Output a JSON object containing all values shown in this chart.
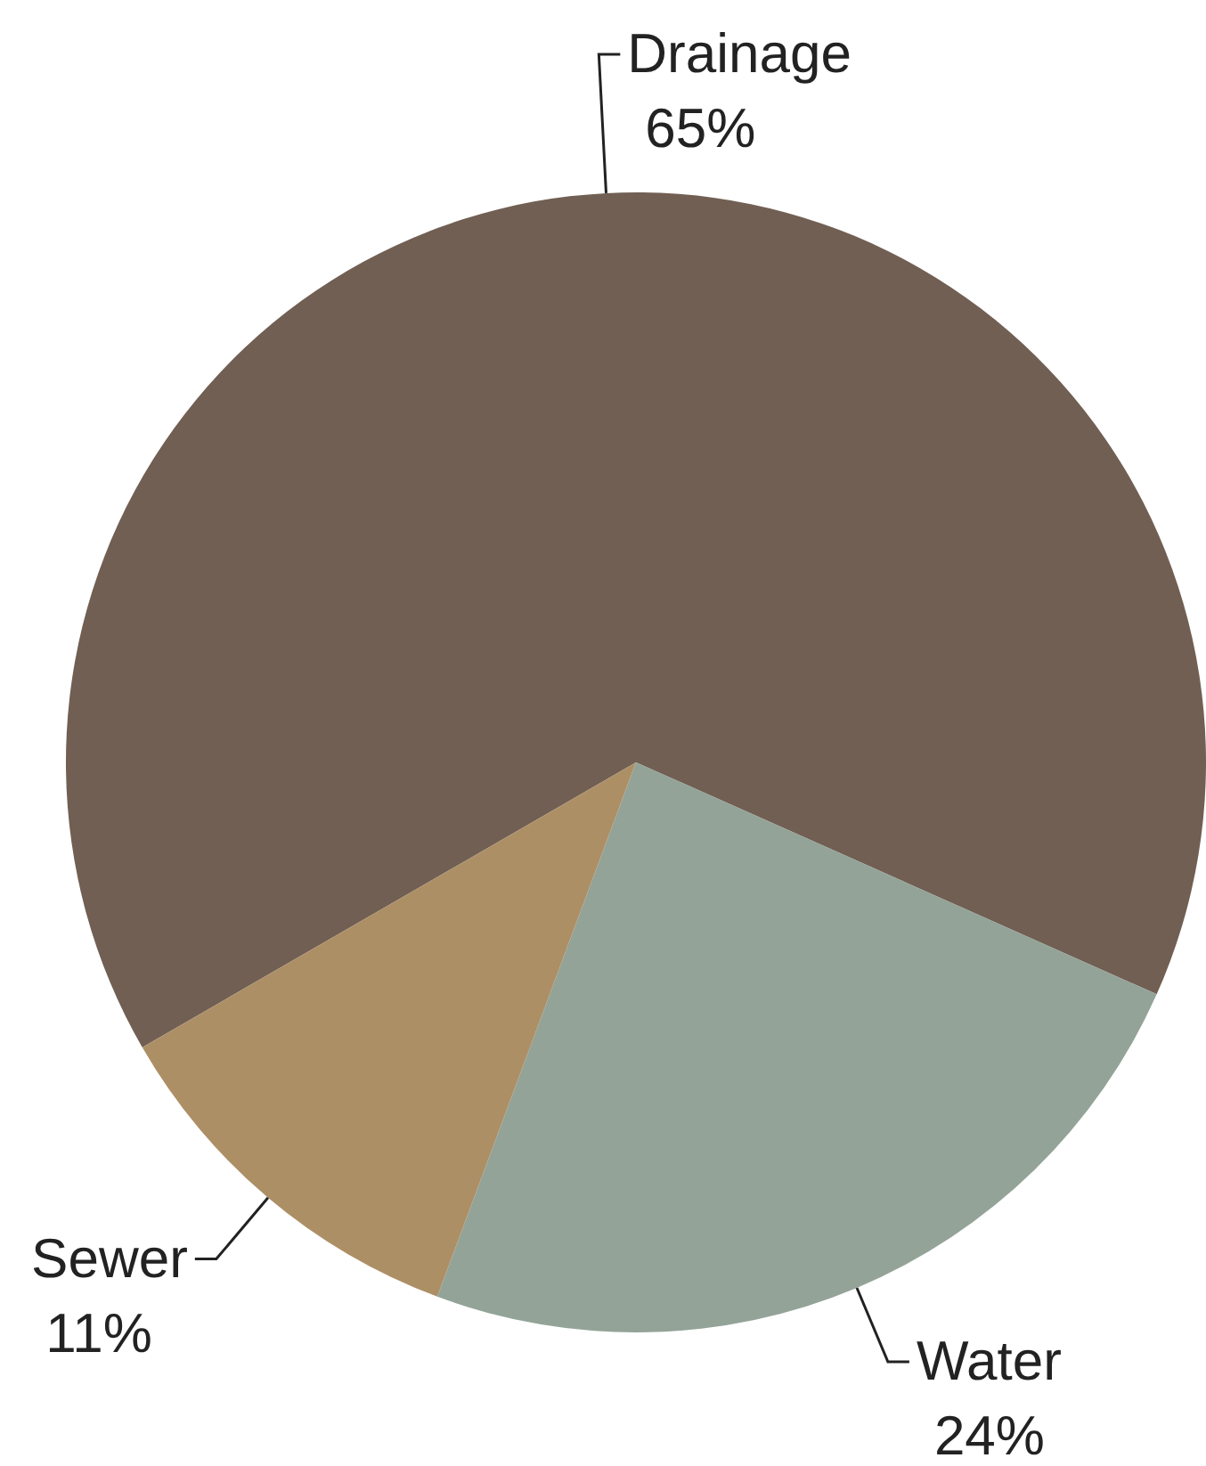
{
  "chart_data": {
    "type": "pie",
    "categories": [
      "Drainage",
      "Water",
      "Sewer"
    ],
    "values": [
      65,
      24,
      11
    ],
    "value_labels": [
      "65%",
      "24%",
      "11%"
    ],
    "colors": [
      "#715f53",
      "#93a398",
      "#ad8f66"
    ]
  }
}
